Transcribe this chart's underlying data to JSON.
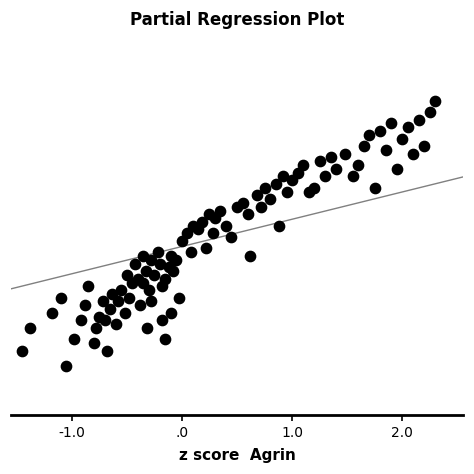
{
  "title": "Partial Regression Plot",
  "xlabel": "z score  Agrin",
  "ylabel": "",
  "xlim": [
    -1.55,
    2.55
  ],
  "ylim": [
    -4.5,
    5.5
  ],
  "xticks": [
    -1.0,
    0.0,
    1.0,
    2.0
  ],
  "xticklabels": [
    "-1.0",
    ".0",
    "1.0",
    "2.0"
  ],
  "scatter_color": "#000000",
  "line_color": "#808080",
  "background_color": "#ffffff",
  "marker_size": 55,
  "line_x": [
    -1.55,
    2.55
  ],
  "line_slope": 0.72,
  "line_intercept": -0.05,
  "scatter_x": [
    -1.45,
    -1.38,
    -1.18,
    -1.1,
    -1.05,
    -0.98,
    -0.92,
    -0.88,
    -0.85,
    -0.8,
    -0.78,
    -0.75,
    -0.72,
    -0.7,
    -0.68,
    -0.65,
    -0.63,
    -0.6,
    -0.58,
    -0.55,
    -0.52,
    -0.5,
    -0.48,
    -0.45,
    -0.43,
    -0.4,
    -0.38,
    -0.35,
    -0.33,
    -0.3,
    -0.28,
    -0.25,
    -0.22,
    -0.2,
    -0.18,
    -0.15,
    -0.12,
    -0.1,
    -0.08,
    -0.05,
    -0.03,
    0.0,
    0.05,
    0.08,
    0.1,
    0.15,
    0.18,
    0.22,
    0.25,
    0.28,
    0.3,
    0.35,
    0.4,
    0.45,
    0.5,
    0.55,
    0.6,
    0.62,
    0.68,
    0.72,
    0.75,
    0.8,
    0.85,
    0.88,
    0.92,
    0.95,
    1.0,
    1.05,
    1.1,
    1.15,
    1.2,
    1.25,
    1.3,
    1.35,
    1.4,
    1.48,
    1.55,
    1.6,
    1.65,
    1.7,
    1.75,
    1.8,
    1.85,
    1.9,
    1.95,
    2.0,
    2.05,
    2.1,
    2.15,
    2.2,
    2.25,
    2.3,
    -0.35,
    -0.32,
    -0.28,
    -0.18,
    -0.15,
    -0.1
  ],
  "scatter_y": [
    -2.8,
    -2.2,
    -1.8,
    -1.4,
    -3.2,
    -2.5,
    -2.0,
    -1.6,
    -1.1,
    -2.6,
    -2.2,
    -1.9,
    -1.5,
    -2.0,
    -2.8,
    -1.7,
    -1.3,
    -2.1,
    -1.5,
    -1.2,
    -1.8,
    -0.8,
    -1.4,
    -1.0,
    -0.5,
    -0.9,
    -1.6,
    -0.3,
    -0.7,
    -1.2,
    -0.4,
    -0.8,
    -0.2,
    -0.5,
    -1.1,
    -0.9,
    -0.6,
    -0.3,
    -0.7,
    -0.4,
    -1.4,
    0.1,
    0.3,
    -0.2,
    0.5,
    0.4,
    0.6,
    -0.1,
    0.8,
    0.3,
    0.7,
    0.9,
    0.5,
    0.2,
    1.0,
    1.1,
    0.8,
    -0.3,
    1.3,
    1.0,
    1.5,
    1.2,
    1.6,
    0.5,
    1.8,
    1.4,
    1.7,
    1.9,
    2.1,
    1.4,
    1.5,
    2.2,
    1.8,
    2.3,
    2.0,
    2.4,
    1.8,
    2.1,
    2.6,
    2.9,
    1.5,
    3.0,
    2.5,
    3.2,
    2.0,
    2.8,
    3.1,
    2.4,
    3.3,
    2.6,
    3.5,
    3.8,
    -1.0,
    -2.2,
    -1.5,
    -2.0,
    -2.5,
    -1.8
  ]
}
